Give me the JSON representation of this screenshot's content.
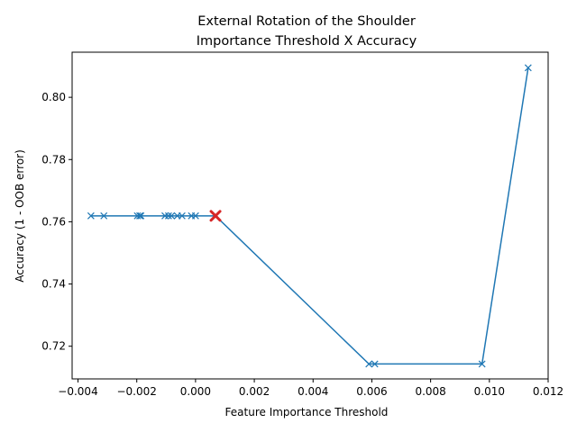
{
  "chart_data": {
    "type": "line",
    "title": [
      "External Rotation of the Shoulder",
      "Importance Threshold X Accuracy"
    ],
    "xlabel": "Feature Importance Threshold",
    "ylabel": "Accuracy (1 - OOB error)",
    "xlim": [
      -0.0042,
      0.012
    ],
    "ylim": [
      0.7095,
      0.8145
    ],
    "xticks": [
      -0.004,
      -0.002,
      0.0,
      0.002,
      0.004,
      0.006,
      0.008,
      0.01,
      0.012
    ],
    "xtick_labels": [
      "−0.004",
      "−0.002",
      "0.000",
      "0.002",
      "0.004",
      "0.006",
      "0.008",
      "0.010",
      "0.012"
    ],
    "yticks": [
      0.72,
      0.74,
      0.76,
      0.78,
      0.8
    ],
    "ytick_labels": [
      "0.72",
      "0.74",
      "0.76",
      "0.78",
      "0.80"
    ],
    "grid": false,
    "series": [
      {
        "color": "#1f77b4",
        "marker": "x",
        "x": [
          -0.00356,
          -0.00312,
          -0.00198,
          -0.0019,
          -0.00186,
          -0.00104,
          -0.00092,
          -0.00082,
          -0.00062,
          -0.00046,
          -0.00014,
          0.0,
          0.00068,
          0.0059,
          0.0061,
          0.00975,
          0.01132
        ],
        "y": [
          0.7619,
          0.7619,
          0.7619,
          0.7619,
          0.7619,
          0.7619,
          0.7619,
          0.7619,
          0.7619,
          0.7619,
          0.7619,
          0.7619,
          0.7619,
          0.7143,
          0.7143,
          0.7143,
          0.8095
        ]
      }
    ],
    "highlight": {
      "x": 0.00068,
      "y": 0.7619,
      "marker": "X",
      "color": "#d62728"
    }
  }
}
